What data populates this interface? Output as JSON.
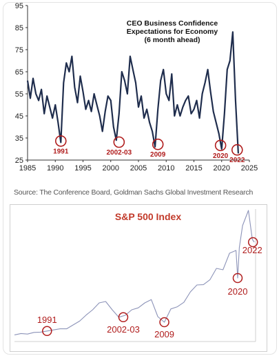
{
  "source_text": "Source: The Conference Board, Goldman Sachs Global Investment Research",
  "chart_data": [
    {
      "type": "line",
      "title": "CEO Business Confidence\nExpectations for Economy\n(6 month ahead)",
      "title_lines": [
        "CEO Business Confidence",
        "Expectations for Economy",
        "(6 month ahead)"
      ],
      "x_ticks": [
        1985,
        1990,
        1995,
        2000,
        2005,
        2010,
        2015,
        2020,
        2025
      ],
      "y_ticks": [
        25,
        35,
        45,
        55,
        65,
        75,
        85,
        95
      ],
      "xlim": [
        1985,
        2025
      ],
      "ylim": [
        25,
        95
      ],
      "line_color": "#1f2d4d",
      "annotation_color": "#b01c1c",
      "grid": false,
      "series": [
        {
          "x": [
            1985.0,
            1985.5,
            1986.0,
            1986.5,
            1987.0,
            1987.5,
            1988.0,
            1988.5,
            1989.0,
            1989.5,
            1990.0,
            1990.5,
            1991.0,
            1991.5,
            1992.0,
            1992.5,
            1993.0,
            1993.5,
            1994.0,
            1994.5,
            1995.0,
            1995.5,
            1996.0,
            1996.5,
            1997.0,
            1997.5,
            1998.0,
            1998.5,
            1999.0,
            1999.5,
            2000.0,
            2000.5,
            2001.0,
            2001.5,
            2002.0,
            2002.5,
            2003.0,
            2003.5,
            2004.0,
            2004.5,
            2005.0,
            2005.5,
            2006.0,
            2006.5,
            2007.0,
            2007.5,
            2008.0,
            2008.5,
            2009.0,
            2009.5,
            2010.0,
            2010.5,
            2011.0,
            2011.5,
            2012.0,
            2012.5,
            2013.0,
            2013.5,
            2014.0,
            2014.5,
            2015.0,
            2015.5,
            2016.0,
            2016.5,
            2017.0,
            2017.5,
            2018.0,
            2018.5,
            2019.0,
            2019.5,
            2020.0,
            2020.5,
            2021.0,
            2021.5,
            2022.0,
            2022.5,
            2023.0
          ],
          "y": [
            61,
            53,
            62,
            55,
            52,
            57,
            46,
            54,
            49,
            44,
            50,
            42,
            33,
            60,
            69,
            65,
            72,
            58,
            51,
            63,
            56,
            48,
            52,
            47,
            55,
            50,
            45,
            38,
            47,
            54,
            52,
            40,
            34,
            46,
            65,
            61,
            55,
            72,
            66,
            60,
            49,
            54,
            44,
            48,
            42,
            38,
            31,
            48,
            61,
            66,
            55,
            52,
            64,
            45,
            50,
            45,
            49,
            52,
            54,
            46,
            48,
            52,
            44,
            55,
            60,
            66,
            56,
            47,
            42,
            37,
            30,
            46,
            66,
            70,
            83,
            52,
            28
          ]
        }
      ],
      "annotations": [
        {
          "label": "1991",
          "x": 1991.0,
          "y": 33
        },
        {
          "label": "2002-03",
          "x": 2001.5,
          "y": 32.5
        },
        {
          "label": "2009",
          "x": 2008.5,
          "y": 31.5
        },
        {
          "label": "2020",
          "x": 2019.8,
          "y": 31
        },
        {
          "label": "2022",
          "x": 2022.8,
          "y": 29
        }
      ]
    },
    {
      "type": "line",
      "title": "S&P 500 Index",
      "title_color": "#c23a2a",
      "line_color": "#8c93b8",
      "annotation_color": "#b01c1c",
      "xlim": [
        1986,
        2023
      ],
      "ylim": [
        0,
        4800
      ],
      "series": [
        {
          "x": [
            1986,
            1987,
            1988,
            1989,
            1990,
            1991,
            1992,
            1993,
            1994,
            1995,
            1996,
            1997,
            1998,
            1999,
            2000,
            2001,
            2002,
            2003,
            2004,
            2005,
            2006,
            2007,
            2008,
            2009,
            2010,
            2011,
            2012,
            2013,
            2014,
            2015,
            2016,
            2017,
            2018,
            2019,
            2020,
            2020.25,
            2020.5,
            2021,
            2021.9,
            2022.5,
            2022.8
          ],
          "y": [
            240,
            290,
            270,
            330,
            340,
            380,
            420,
            460,
            460,
            600,
            740,
            960,
            1150,
            1400,
            1450,
            1150,
            880,
            950,
            1150,
            1220,
            1400,
            1520,
            900,
            700,
            1180,
            1260,
            1420,
            1800,
            2050,
            2060,
            2240,
            2650,
            2600,
            3200,
            3300,
            2300,
            3400,
            4200,
            4750,
            3700,
            3600
          ]
        }
      ],
      "annotations": [
        {
          "label": "1991",
          "x": 1991.0,
          "y": 380
        },
        {
          "label": "2002-03",
          "x": 2002.7,
          "y": 880
        },
        {
          "label": "2009",
          "x": 2009.0,
          "y": 700
        },
        {
          "label": "2020",
          "x": 2020.25,
          "y": 2300
        },
        {
          "label": "2022",
          "x": 2022.6,
          "y": 3600
        }
      ]
    }
  ]
}
